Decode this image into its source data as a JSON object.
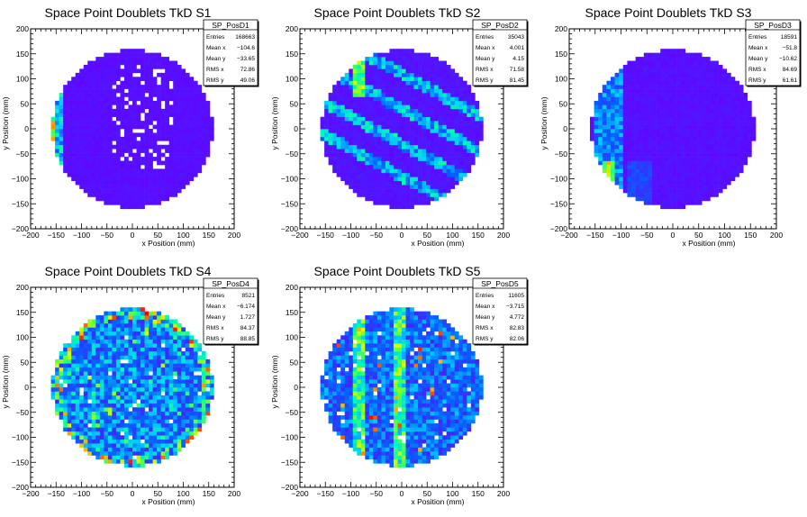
{
  "chart_data": [
    {
      "type": "heatmap",
      "title": "Space Point Doublets TkD S1",
      "xlabel": "x Position (mm)",
      "ylabel": "y Position (mm)",
      "xlim": [
        -200,
        200
      ],
      "ylim": [
        -200,
        200
      ],
      "xticks": [
        "−200",
        "−150",
        "−100",
        "−50",
        "0",
        "50",
        "100",
        "150",
        "200"
      ],
      "yticks": [
        "−200",
        "−150",
        "−100",
        "−50",
        "0",
        "50",
        "100",
        "150",
        "200"
      ],
      "stats": {
        "name": "SP_PosD1",
        "rows": [
          {
            "label": "Entries",
            "value": "168663"
          },
          {
            "label": "Mean x",
            "value": "−104.6"
          },
          {
            "label": "Mean y",
            "value": "−33.65"
          },
          {
            "label": "RMS x",
            "value": "72.86"
          },
          {
            "label": "RMS y",
            "value": "49.06"
          }
        ]
      },
      "pattern": "uniform-edge-hot"
    },
    {
      "type": "heatmap",
      "title": "Space Point Doublets TkD S2",
      "xlabel": "x Position (mm)",
      "ylabel": "y Position (mm)",
      "xlim": [
        -200,
        200
      ],
      "ylim": [
        -200,
        200
      ],
      "xticks": [
        "−200",
        "−150",
        "−100",
        "−50",
        "0",
        "50",
        "100",
        "150",
        "200"
      ],
      "yticks": [
        "−200",
        "−150",
        "−100",
        "−50",
        "0",
        "50",
        "100",
        "150",
        "200"
      ],
      "stats": {
        "name": "SP_PosD2",
        "rows": [
          {
            "label": "Entries",
            "value": "35043"
          },
          {
            "label": "Mean x",
            "value": "4.001"
          },
          {
            "label": "Mean y",
            "value": "4.15"
          },
          {
            "label": "RMS x",
            "value": "71.58"
          },
          {
            "label": "RMS y",
            "value": "81.45"
          }
        ]
      },
      "pattern": "diagonal-bands"
    },
    {
      "type": "heatmap",
      "title": "Space Point Doublets TkD S3",
      "xlabel": "x Position (mm)",
      "ylabel": "y Position (mm)",
      "xlim": [
        -200,
        200
      ],
      "ylim": [
        -200,
        200
      ],
      "xticks": [
        "−200",
        "−150",
        "−100",
        "−50",
        "0",
        "50",
        "100",
        "150",
        "200"
      ],
      "yticks": [
        "−200",
        "−150",
        "−100",
        "−50",
        "0",
        "50",
        "100",
        "150",
        "200"
      ],
      "stats": {
        "name": "SP_PosD3",
        "rows": [
          {
            "label": "Entries",
            "value": "18591"
          },
          {
            "label": "Mean x",
            "value": "−51.8"
          },
          {
            "label": "Mean y",
            "value": "−10.62"
          },
          {
            "label": "RMS x",
            "value": "84.69"
          },
          {
            "label": "RMS y",
            "value": "61.61"
          }
        ]
      },
      "pattern": "left-vertical-band"
    },
    {
      "type": "heatmap",
      "title": "Space Point Doublets TkD S4",
      "xlabel": "x Position (mm)",
      "ylabel": "y Position (mm)",
      "xlim": [
        -200,
        200
      ],
      "ylim": [
        -200,
        200
      ],
      "xticks": [
        "−200",
        "−150",
        "−100",
        "−50",
        "0",
        "50",
        "100",
        "150",
        "200"
      ],
      "yticks": [
        "−200",
        "−150",
        "−100",
        "−50",
        "0",
        "50",
        "100",
        "150",
        "200"
      ],
      "stats": {
        "name": "SP_PosD4",
        "rows": [
          {
            "label": "Entries",
            "value": "8521"
          },
          {
            "label": "Mean x",
            "value": "−6.174"
          },
          {
            "label": "Mean y",
            "value": "1.727"
          },
          {
            "label": "RMS x",
            "value": "84.37"
          },
          {
            "label": "RMS y",
            "value": "88.85"
          }
        ]
      },
      "pattern": "noisy-uniform"
    },
    {
      "type": "heatmap",
      "title": "Space Point Doublets TkD S5",
      "xlabel": "x Position (mm)",
      "ylabel": "y Position (mm)",
      "xlim": [
        -200,
        200
      ],
      "ylim": [
        -200,
        200
      ],
      "xticks": [
        "−200",
        "−150",
        "−100",
        "−50",
        "0",
        "50",
        "100",
        "150",
        "200"
      ],
      "yticks": [
        "−200",
        "−150",
        "−100",
        "−50",
        "0",
        "50",
        "100",
        "150",
        "200"
      ],
      "stats": {
        "name": "SP_PosD5",
        "rows": [
          {
            "label": "Entries",
            "value": "11605"
          },
          {
            "label": "Mean x",
            "value": "−3.715"
          },
          {
            "label": "Mean y",
            "value": "4.772"
          },
          {
            "label": "RMS x",
            "value": "82.83"
          },
          {
            "label": "RMS y",
            "value": "82.06"
          }
        ]
      },
      "pattern": "vertical-bands-noisy"
    }
  ]
}
